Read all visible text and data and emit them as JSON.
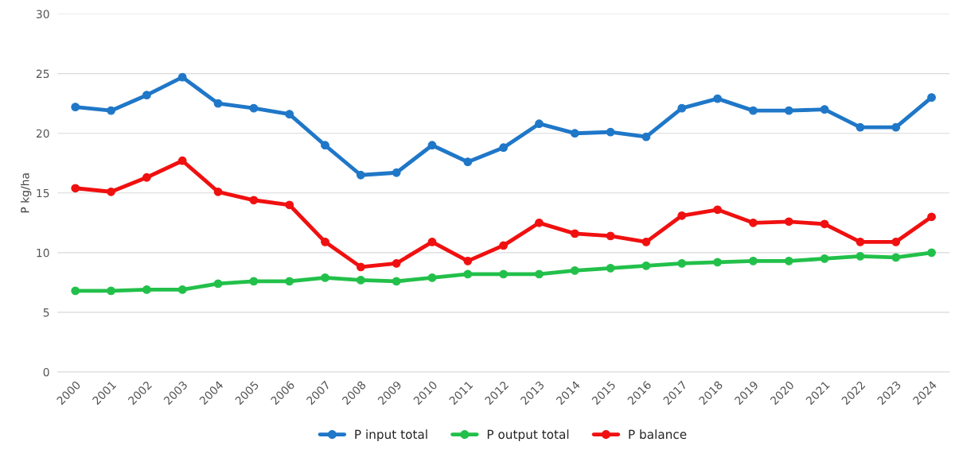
{
  "chart_data": {
    "type": "line",
    "ylabel": "P kg/ha",
    "categories": [
      "2000",
      "2001",
      "2002",
      "2003",
      "2004",
      "2005",
      "2006",
      "2007",
      "2008",
      "2009",
      "2010",
      "2011",
      "2012",
      "2013",
      "2014",
      "2015",
      "2016",
      "2017",
      "2018",
      "2019",
      "2020",
      "2021",
      "2022",
      "2023",
      "2024"
    ],
    "series": [
      {
        "name": "P input total",
        "color": "#1f77c8",
        "values": [
          22.2,
          21.9,
          23.2,
          24.7,
          22.5,
          22.1,
          21.6,
          19.0,
          16.5,
          16.7,
          19.0,
          17.6,
          18.8,
          20.8,
          20.0,
          20.1,
          19.7,
          22.1,
          22.9,
          21.9,
          21.9,
          22.0,
          20.5,
          20.5,
          23.0
        ]
      },
      {
        "name": "P output total",
        "color": "#22c04a",
        "values": [
          6.8,
          6.8,
          6.9,
          6.9,
          7.4,
          7.6,
          7.6,
          7.9,
          7.7,
          7.6,
          7.9,
          8.2,
          8.2,
          8.2,
          8.5,
          8.7,
          8.9,
          9.1,
          9.2,
          9.3,
          9.3,
          9.5,
          9.7,
          9.6,
          10.0
        ]
      },
      {
        "name": "P balance",
        "color": "#f01010",
        "values": [
          15.4,
          15.1,
          16.3,
          17.7,
          15.1,
          14.4,
          14.0,
          10.9,
          8.8,
          9.1,
          10.9,
          9.3,
          10.6,
          12.5,
          11.6,
          11.4,
          10.9,
          13.1,
          13.6,
          12.5,
          12.6,
          12.4,
          10.9,
          10.9,
          13.0
        ]
      }
    ],
    "ylim": [
      0,
      30
    ],
    "yticks": [
      0,
      5,
      10,
      15,
      20,
      25,
      30
    ],
    "grid": "y",
    "legend": "bottom",
    "marker": "circle",
    "line_style": "solid"
  }
}
